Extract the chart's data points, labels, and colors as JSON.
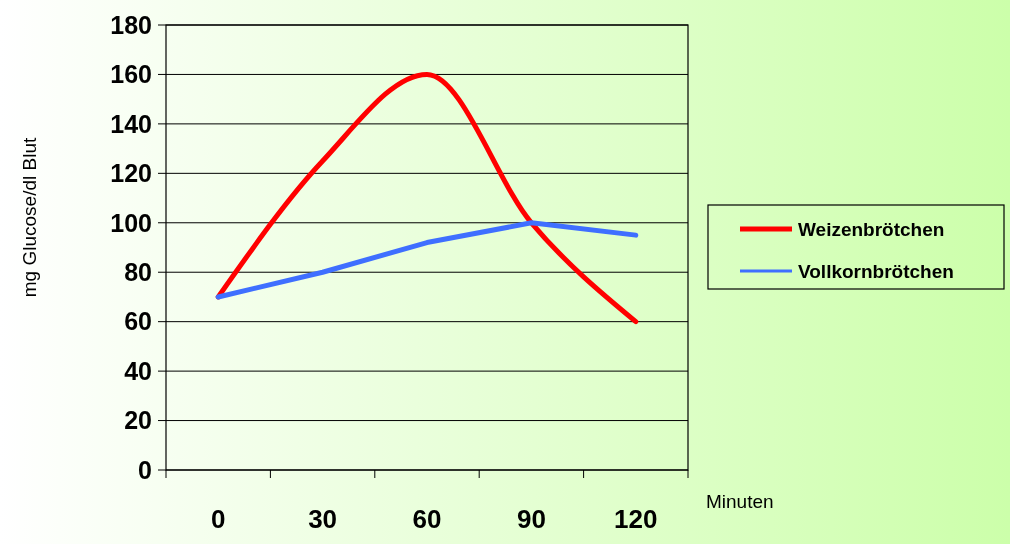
{
  "chart_data": {
    "type": "line",
    "xlabel": "Minuten",
    "ylabel": "mg Glucose/dl Blut",
    "categories": [
      "0",
      "30",
      "60",
      "90",
      "120"
    ],
    "series": [
      {
        "name": "Weizenbrötchen",
        "color": "#ff0000",
        "values": [
          70,
          125,
          160,
          100,
          60
        ]
      },
      {
        "name": "Vollkornbrötchen",
        "color": "#3f6fff",
        "values": [
          70,
          80,
          92,
          100,
          95
        ]
      }
    ],
    "ylim": [
      0,
      180
    ],
    "yticks": [
      0,
      20,
      40,
      60,
      80,
      100,
      120,
      140,
      160,
      180
    ],
    "grid": "y",
    "legend": "right",
    "marker": "none"
  }
}
